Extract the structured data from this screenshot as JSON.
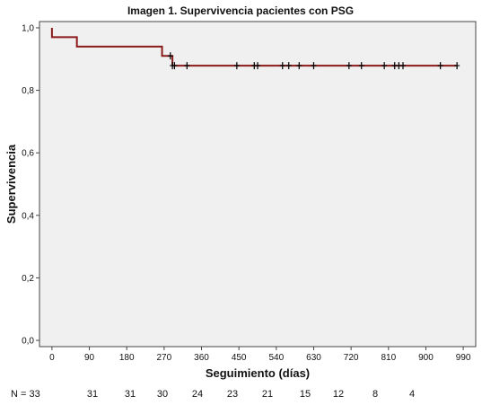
{
  "chart_data": {
    "type": "line",
    "title": "Imagen 1. Supervivencia pacientes con PSG",
    "xlabel": "Seguimiento (días)",
    "ylabel": "Supervivencia",
    "xlim": [
      -30,
      1020
    ],
    "ylim": [
      -0.02,
      1.02
    ],
    "x_ticks": [
      0,
      90,
      180,
      270,
      360,
      450,
      540,
      630,
      720,
      810,
      900,
      990
    ],
    "y_ticks": [
      0.0,
      0.2,
      0.4,
      0.6,
      0.8,
      1.0
    ],
    "y_tick_labels": [
      "0,0",
      "0,2",
      "0,4",
      "0,6",
      "0,8",
      "1,0"
    ],
    "grid": false,
    "series": [
      {
        "color": "#8b1a1a",
        "steps": [
          {
            "x": 0,
            "y": 1.0
          },
          {
            "x": 0,
            "y": 0.97
          },
          {
            "x": 60,
            "y": 0.94
          },
          {
            "x": 265,
            "y": 0.91
          },
          {
            "x": 290,
            "y": 0.879
          },
          {
            "x": 975,
            "y": 0.879
          }
        ],
        "censored": [
          {
            "x": 285,
            "y": 0.91
          },
          {
            "x": 290,
            "y": 0.879
          },
          {
            "x": 295,
            "y": 0.879
          },
          {
            "x": 325,
            "y": 0.879
          },
          {
            "x": 445,
            "y": 0.879
          },
          {
            "x": 487,
            "y": 0.879
          },
          {
            "x": 495,
            "y": 0.879
          },
          {
            "x": 555,
            "y": 0.879
          },
          {
            "x": 570,
            "y": 0.879
          },
          {
            "x": 595,
            "y": 0.879
          },
          {
            "x": 630,
            "y": 0.879
          },
          {
            "x": 715,
            "y": 0.879
          },
          {
            "x": 745,
            "y": 0.879
          },
          {
            "x": 800,
            "y": 0.879
          },
          {
            "x": 825,
            "y": 0.879
          },
          {
            "x": 835,
            "y": 0.879
          },
          {
            "x": 845,
            "y": 0.879
          },
          {
            "x": 935,
            "y": 0.879
          },
          {
            "x": 975,
            "y": 0.879
          }
        ]
      }
    ],
    "risk_table": {
      "prefix": "N = 33",
      "values": [
        "31",
        "31",
        "30",
        "24",
        "23",
        "21",
        "15",
        "12",
        "8",
        "4"
      ]
    }
  }
}
